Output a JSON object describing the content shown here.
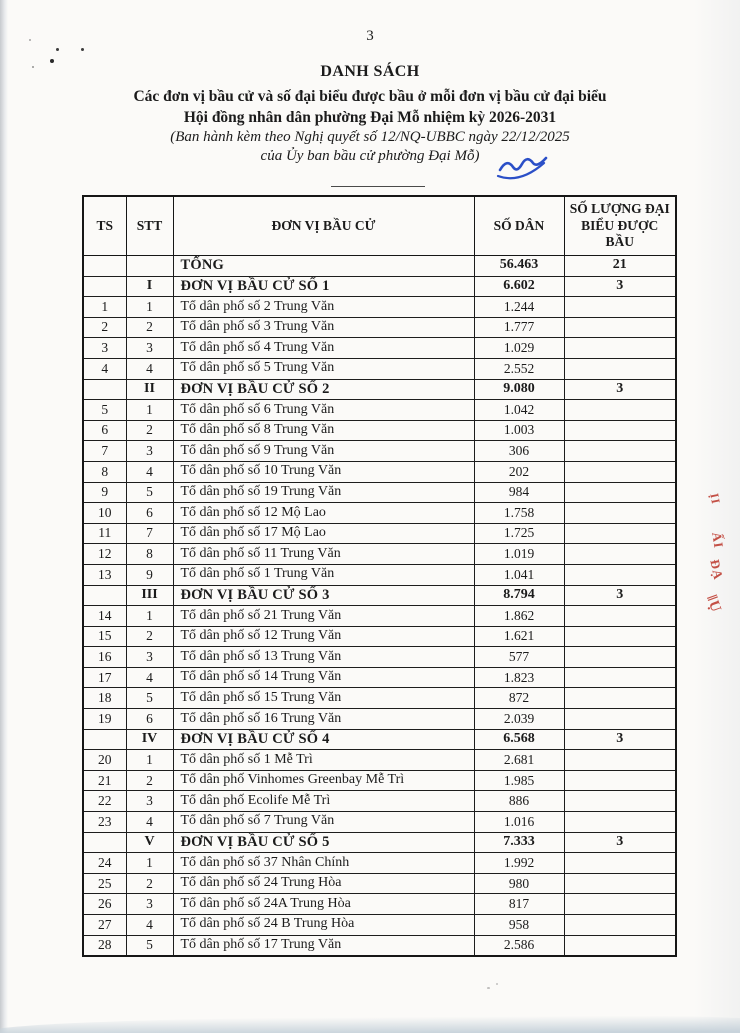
{
  "page": {
    "number": "3"
  },
  "header": {
    "title": "DANH SÁCH",
    "subtitle1": "Các đơn vị bầu cử và số đại biểu được bầu ở mỗi đơn vị bầu cử đại biểu",
    "subtitle2": "Hội đồng nhân dân phường Đại Mỗ nhiệm kỳ 2026-2031",
    "note1": "(Ban hành kèm theo Nghị quyết số 12/NQ-UBBC ngày 22/12/2025",
    "note2": "của Ủy ban bầu cử phường Đại Mỗ)"
  },
  "table": {
    "columns": [
      "TS",
      "STT",
      "ĐƠN VỊ BẦU CỬ",
      "SỐ DÂN",
      "SỐ LƯỢNG ĐẠI BIỂU ĐƯỢC BẦU"
    ],
    "rows": [
      {
        "ts": "",
        "stt": "",
        "unit": "TỔNG",
        "population": "56.463",
        "delegates": "21",
        "kind": "total"
      },
      {
        "ts": "",
        "stt": "I",
        "unit": "ĐƠN VỊ BẦU CỬ SỐ 1",
        "population": "6.602",
        "delegates": "3",
        "kind": "section"
      },
      {
        "ts": "1",
        "stt": "1",
        "unit": "Tổ dân phố số 2 Trung Văn",
        "population": "1.244",
        "delegates": "",
        "kind": "unit"
      },
      {
        "ts": "2",
        "stt": "2",
        "unit": "Tổ dân phố số 3 Trung Văn",
        "population": "1.777",
        "delegates": "",
        "kind": "unit"
      },
      {
        "ts": "3",
        "stt": "3",
        "unit": "Tổ dân phố số 4 Trung Văn",
        "population": "1.029",
        "delegates": "",
        "kind": "unit"
      },
      {
        "ts": "4",
        "stt": "4",
        "unit": "Tổ dân phố số 5 Trung Văn",
        "population": "2.552",
        "delegates": "",
        "kind": "unit"
      },
      {
        "ts": "",
        "stt": "II",
        "unit": "ĐƠN VỊ BẦU CỬ SỐ 2",
        "population": "9.080",
        "delegates": "3",
        "kind": "section"
      },
      {
        "ts": "5",
        "stt": "1",
        "unit": "Tổ dân phố số 6 Trung Văn",
        "population": "1.042",
        "delegates": "",
        "kind": "unit"
      },
      {
        "ts": "6",
        "stt": "2",
        "unit": "Tổ dân phố số 8 Trung Văn",
        "population": "1.003",
        "delegates": "",
        "kind": "unit"
      },
      {
        "ts": "7",
        "stt": "3",
        "unit": "Tổ dân phố số 9 Trung Văn",
        "population": "306",
        "delegates": "",
        "kind": "unit"
      },
      {
        "ts": "8",
        "stt": "4",
        "unit": "Tổ dân phố số 10 Trung Văn",
        "population": "202",
        "delegates": "",
        "kind": "unit"
      },
      {
        "ts": "9",
        "stt": "5",
        "unit": "Tổ dân phố số 19 Trung Văn",
        "population": "984",
        "delegates": "",
        "kind": "unit"
      },
      {
        "ts": "10",
        "stt": "6",
        "unit": "Tổ dân phố số 12 Mộ Lao",
        "population": "1.758",
        "delegates": "",
        "kind": "unit"
      },
      {
        "ts": "11",
        "stt": "7",
        "unit": "Tổ dân phố số 17 Mộ Lao",
        "population": "1.725",
        "delegates": "",
        "kind": "unit"
      },
      {
        "ts": "12",
        "stt": "8",
        "unit": "Tổ dân phố số 11 Trung Văn",
        "population": "1.019",
        "delegates": "",
        "kind": "unit"
      },
      {
        "ts": "13",
        "stt": "9",
        "unit": "Tổ dân phố số 1 Trung Văn",
        "population": "1.041",
        "delegates": "",
        "kind": "unit"
      },
      {
        "ts": "",
        "stt": "III",
        "unit": "ĐƠN VỊ BẦU CỬ SỐ 3",
        "population": "8.794",
        "delegates": "3",
        "kind": "section"
      },
      {
        "ts": "14",
        "stt": "1",
        "unit": "Tổ dân phố số 21 Trung Văn",
        "population": "1.862",
        "delegates": "",
        "kind": "unit"
      },
      {
        "ts": "15",
        "stt": "2",
        "unit": "Tổ dân phố số 12 Trung Văn",
        "population": "1.621",
        "delegates": "",
        "kind": "unit"
      },
      {
        "ts": "16",
        "stt": "3",
        "unit": "Tổ dân phố số 13 Trung Văn",
        "population": "577",
        "delegates": "",
        "kind": "unit"
      },
      {
        "ts": "17",
        "stt": "4",
        "unit": "Tổ dân phố số 14 Trung Văn",
        "population": "1.823",
        "delegates": "",
        "kind": "unit"
      },
      {
        "ts": "18",
        "stt": "5",
        "unit": "Tổ dân phố số 15 Trung Văn",
        "population": "872",
        "delegates": "",
        "kind": "unit"
      },
      {
        "ts": "19",
        "stt": "6",
        "unit": "Tổ dân phố số 16 Trung Văn",
        "population": "2.039",
        "delegates": "",
        "kind": "unit"
      },
      {
        "ts": "",
        "stt": "IV",
        "unit": "ĐƠN VỊ BẦU CỬ SỐ 4",
        "population": "6.568",
        "delegates": "3",
        "kind": "section"
      },
      {
        "ts": "20",
        "stt": "1",
        "unit": "Tổ dân phố số 1 Mễ Trì",
        "population": "2.681",
        "delegates": "",
        "kind": "unit"
      },
      {
        "ts": "21",
        "stt": "2",
        "unit": "Tổ dân phố Vinhomes Greenbay Mễ Trì",
        "population": "1.985",
        "delegates": "",
        "kind": "unit"
      },
      {
        "ts": "22",
        "stt": "3",
        "unit": "Tổ dân phố Ecolife Mễ Trì",
        "population": "886",
        "delegates": "",
        "kind": "unit"
      },
      {
        "ts": "23",
        "stt": "4",
        "unit": "Tổ dân phố số 7 Trung Văn",
        "population": "1.016",
        "delegates": "",
        "kind": "unit"
      },
      {
        "ts": "",
        "stt": "V",
        "unit": "ĐƠN VỊ BẦU CỬ SỐ 5",
        "population": "7.333",
        "delegates": "3",
        "kind": "section"
      },
      {
        "ts": "24",
        "stt": "1",
        "unit": "Tổ dân phố số 37 Nhân Chính",
        "population": "1.992",
        "delegates": "",
        "kind": "unit"
      },
      {
        "ts": "25",
        "stt": "2",
        "unit": "Tổ dân phố số 24 Trung Hòa",
        "population": "980",
        "delegates": "",
        "kind": "unit"
      },
      {
        "ts": "26",
        "stt": "3",
        "unit": "Tổ dân phố số 24A Trung Hòa",
        "population": "817",
        "delegates": "",
        "kind": "unit"
      },
      {
        "ts": "27",
        "stt": "4",
        "unit": "Tổ dân phố số 24 B Trung Hòa",
        "population": "958",
        "delegates": "",
        "kind": "unit"
      },
      {
        "ts": "28",
        "stt": "5",
        "unit": "Tổ dân phố số 17 Trung Văn",
        "population": "2.586",
        "delegates": "",
        "kind": "unit"
      }
    ]
  },
  "stamp": {
    "color": "#bd3a2e",
    "fragments": [
      "ỊI",
      "ẤI",
      "ĐẠ",
      "‖Ụ"
    ]
  },
  "pen": {
    "color": "#2b4fc7"
  }
}
